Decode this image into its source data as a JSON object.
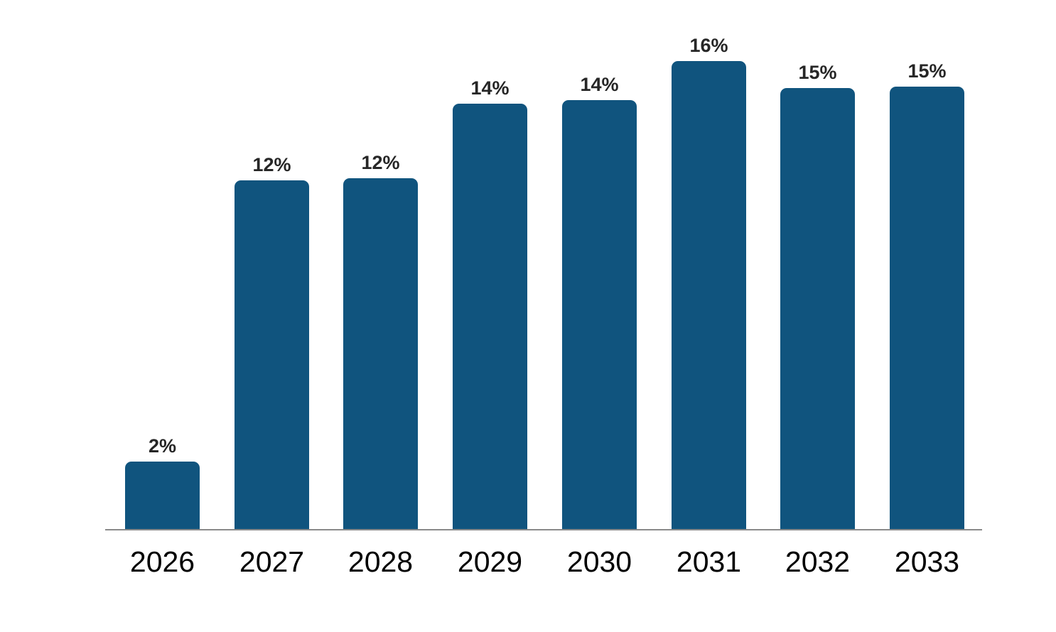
{
  "chart_data": {
    "type": "bar",
    "title": "",
    "xlabel": "",
    "ylabel": "",
    "categories": [
      "2026",
      "2027",
      "2028",
      "2029",
      "2030",
      "2031",
      "2032",
      "2033"
    ],
    "values": [
      2,
      12,
      12,
      14,
      14,
      16,
      15,
      15
    ],
    "labels": [
      "2%",
      "12%",
      "12%",
      "14%",
      "14%",
      "16%",
      "15%",
      "15%"
    ],
    "values_precise": [
      2.26,
      11.69,
      11.76,
      14.26,
      14.38,
      15.69,
      14.79,
      14.83
    ],
    "ylim": [
      0,
      17
    ],
    "grid": false,
    "legend": "none",
    "data_labels": "above-bars",
    "bar_color": "#10547E",
    "value_label_color": "#262626",
    "category_label_color": "#000000",
    "axis_line_color": "#8A8A8A",
    "background_color": "#FFFFFF"
  }
}
